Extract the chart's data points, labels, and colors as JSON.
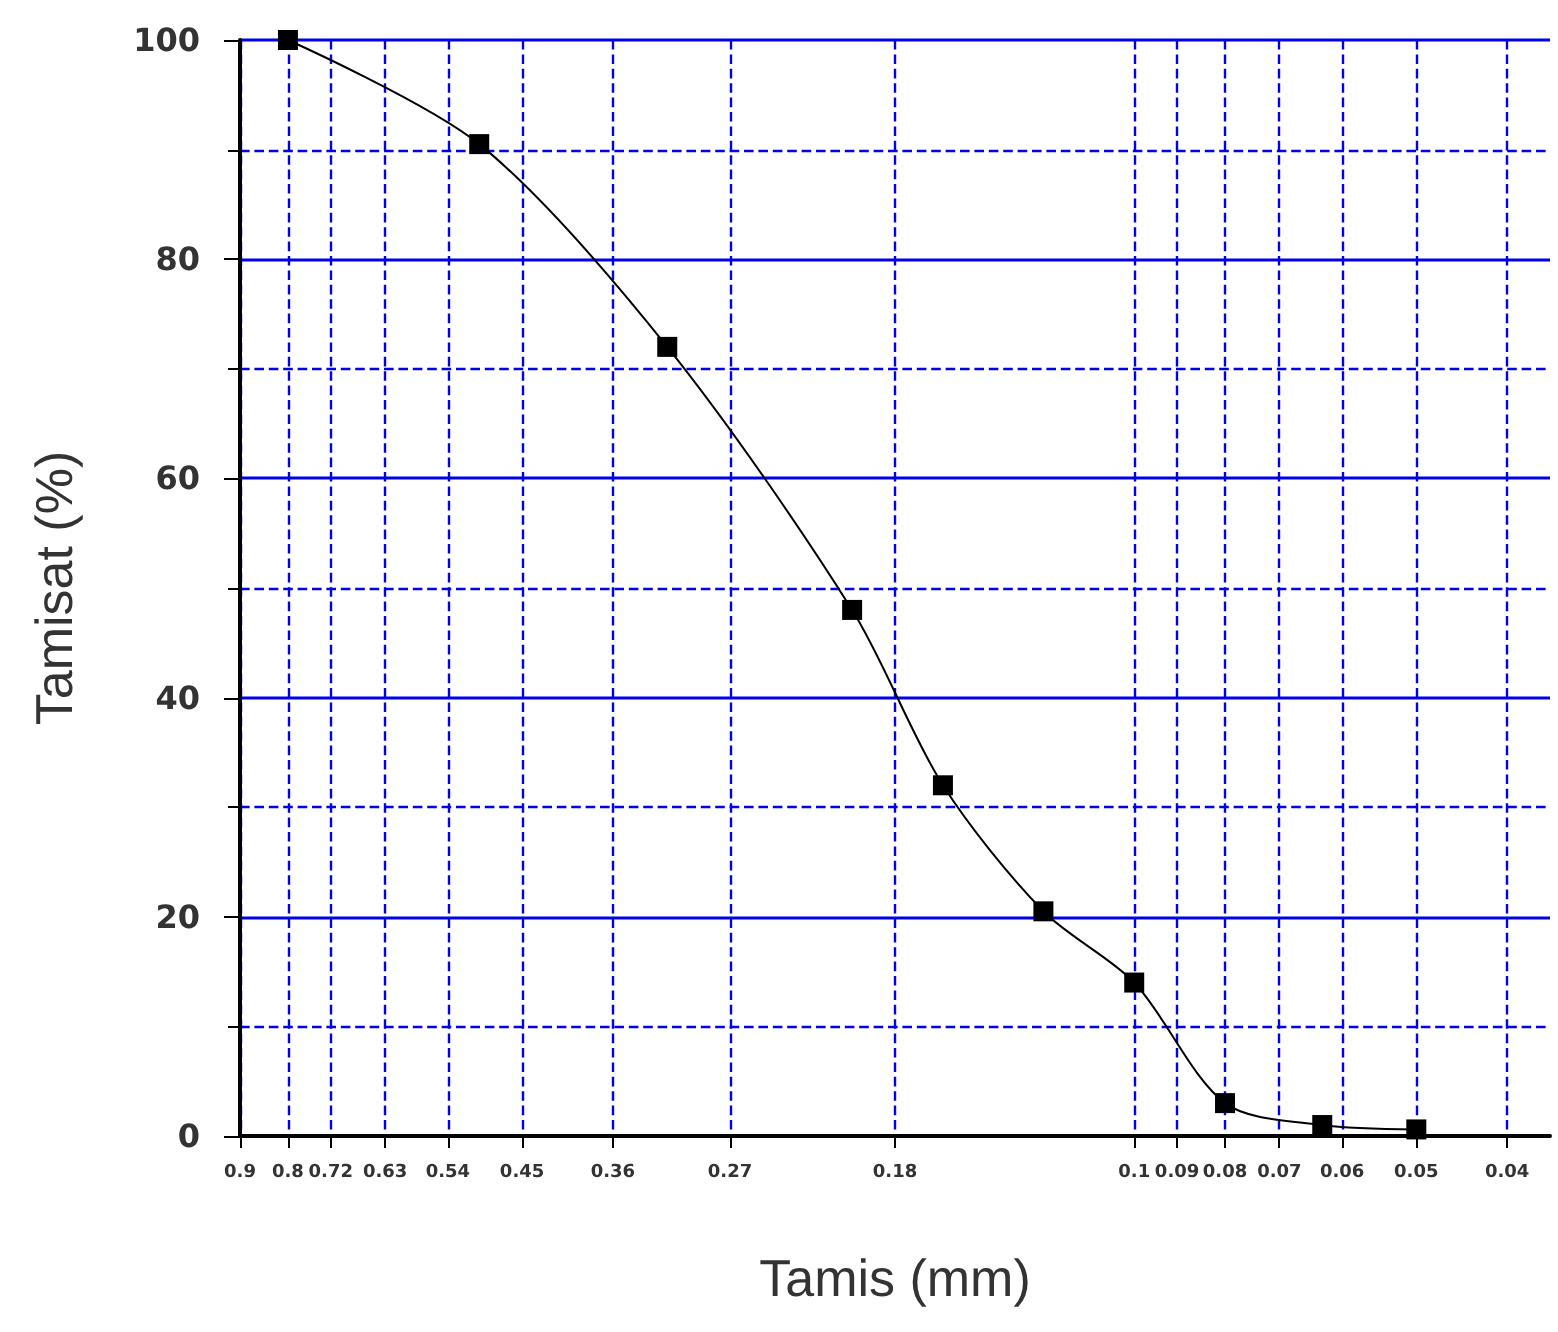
{
  "chart_data": {
    "type": "line",
    "xlabel": "Tamis (mm)",
    "ylabel": "Tamisat (%)",
    "x": [
      0.8,
      0.5,
      0.315,
      0.2,
      0.16,
      0.125,
      0.1,
      0.08,
      0.063,
      0.05
    ],
    "series": [
      {
        "color": "#000000",
        "values": [
          100,
          90.5,
          72,
          48,
          32,
          20.5,
          14,
          3,
          1,
          0.6
        ]
      }
    ],
    "xlim": [
      0.9,
      0.036
    ],
    "xticks": [
      0.9,
      0.8,
      0.72,
      0.63,
      0.54,
      0.45,
      0.36,
      0.27,
      0.18,
      0.1,
      0.09,
      0.08,
      0.07,
      0.06,
      0.05,
      0.04
    ],
    "ylim": [
      0,
      100
    ],
    "yticks": [
      0,
      20,
      40,
      60,
      80,
      100
    ],
    "log": "x",
    "grid": true,
    "marker": "square",
    "line_style": "solid"
  }
}
